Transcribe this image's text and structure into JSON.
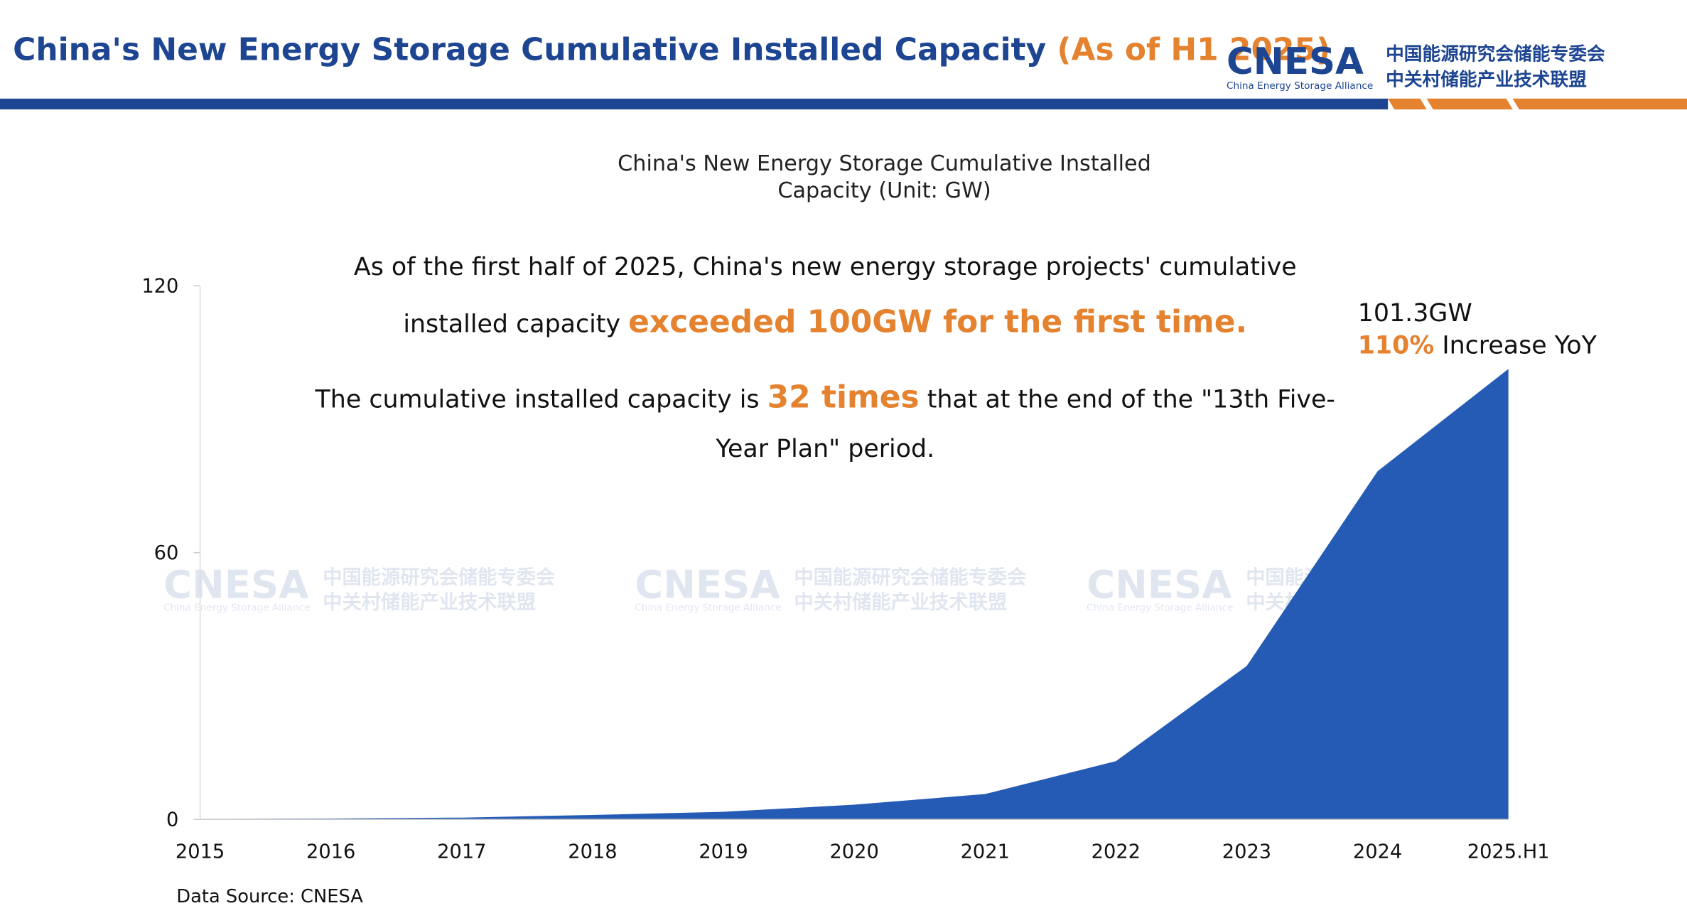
{
  "header": {
    "title": "China's New Energy Storage Cumulative Installed Capacity",
    "title_highlight": "(As of H1 2025)",
    "logo": "CNESA",
    "logo_subtitle": "China Energy Storage Alliance",
    "logo_cn_1": "中国能源研究会储能专委会",
    "logo_cn_2": "中关村储能产业技术联盟"
  },
  "chart_data": {
    "type": "area",
    "title": [
      "China's New Energy Storage Cumulative Installed",
      "Capacity (Unit: GW)"
    ],
    "categories": [
      "2015",
      "2016",
      "2017",
      "2018",
      "2019",
      "2020",
      "2021",
      "2022",
      "2023",
      "2024",
      "2025.H1"
    ],
    "values": [
      0.1,
      0.2,
      0.4,
      1.0,
      1.7,
      3.3,
      5.7,
      13.1,
      34.5,
      78.3,
      101.3
    ],
    "color": "#255bb5",
    "ylim": [
      0,
      120
    ],
    "yticks": [
      0,
      60,
      120
    ],
    "annotations": {
      "line1": "As of the first half of 2025, China's new energy storage projects' cumulative",
      "line2_start": "installed capacity ",
      "line2_highlight": "exceeded 100GW for the first time.",
      "line3_start": "The cumulative installed capacity is ",
      "line3_highlight": "32 times",
      "line3_end": " that at the end of the \"13th Five-",
      "line4": "Year Plan\" period.",
      "callout_value": "101.3GW",
      "callout_pct": "110%",
      "callout_text": " Increase YoY"
    },
    "source": "Data Source: CNESA"
  }
}
